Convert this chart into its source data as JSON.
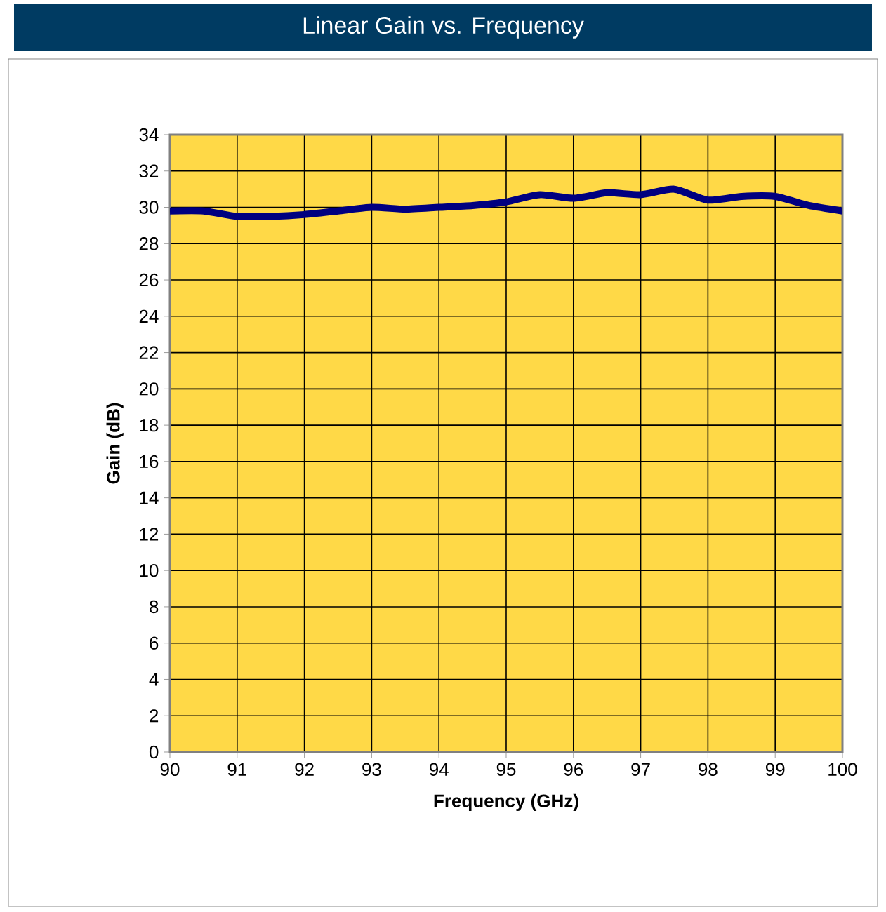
{
  "chart_data": {
    "type": "line",
    "title": "Linear Gain vs. Frequency",
    "xlabel": "Frequency (GHz)",
    "ylabel": "Gain (dB)",
    "x": [
      90,
      90.5,
      91,
      91.5,
      92,
      92.5,
      93,
      93.5,
      94,
      94.5,
      95,
      95.5,
      96,
      96.5,
      97,
      97.5,
      98,
      98.5,
      99,
      99.5,
      100
    ],
    "series": [
      {
        "color": "#000080",
        "values": [
          29.8,
          29.8,
          29.5,
          29.5,
          29.6,
          29.8,
          30.0,
          29.9,
          30.0,
          30.1,
          30.3,
          30.7,
          30.5,
          30.8,
          30.7,
          31.0,
          30.4,
          30.6,
          30.6,
          30.1,
          29.8
        ]
      }
    ],
    "xlim": [
      90,
      100
    ],
    "ylim": [
      0,
      34
    ],
    "xticks": [
      90,
      91,
      92,
      93,
      94,
      95,
      96,
      97,
      98,
      99,
      100
    ],
    "yticks": [
      0,
      2,
      4,
      6,
      8,
      10,
      12,
      14,
      16,
      18,
      20,
      22,
      24,
      26,
      28,
      30,
      32,
      34
    ],
    "grid": true,
    "marker": "none",
    "line_style": "solid"
  }
}
